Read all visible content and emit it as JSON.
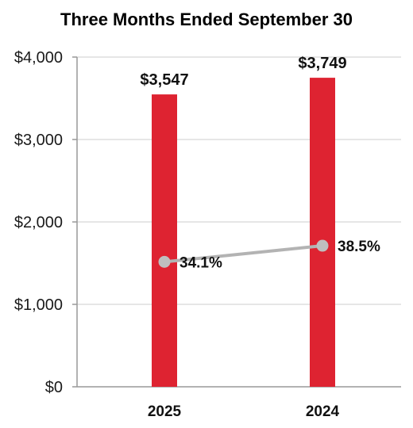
{
  "chart_data": {
    "type": "bar",
    "title": "Three Months Ended September 30",
    "categories": [
      "2025",
      "2024"
    ],
    "series": [
      {
        "kind": "bar",
        "values": [
          3547,
          3749
        ],
        "labels": [
          "$3,547",
          "$3,749"
        ],
        "color": "#de2331"
      },
      {
        "kind": "line",
        "values": [
          34.1,
          38.5
        ],
        "labels": [
          "34.1%",
          "38.5%"
        ],
        "color": "#b3b3b3",
        "marker_color": "#bfbfbf",
        "y_range": [
          0,
          90
        ]
      }
    ],
    "y_axis": {
      "min": 0,
      "max": 4000,
      "ticks": [
        0,
        1000,
        2000,
        3000,
        4000
      ],
      "tick_labels": [
        "$0",
        "$1,000",
        "$2,000",
        "$3,000",
        "$4,000"
      ]
    },
    "grid": true,
    "gridline_color": "#e6e6e6",
    "axis_color": "#999999"
  }
}
